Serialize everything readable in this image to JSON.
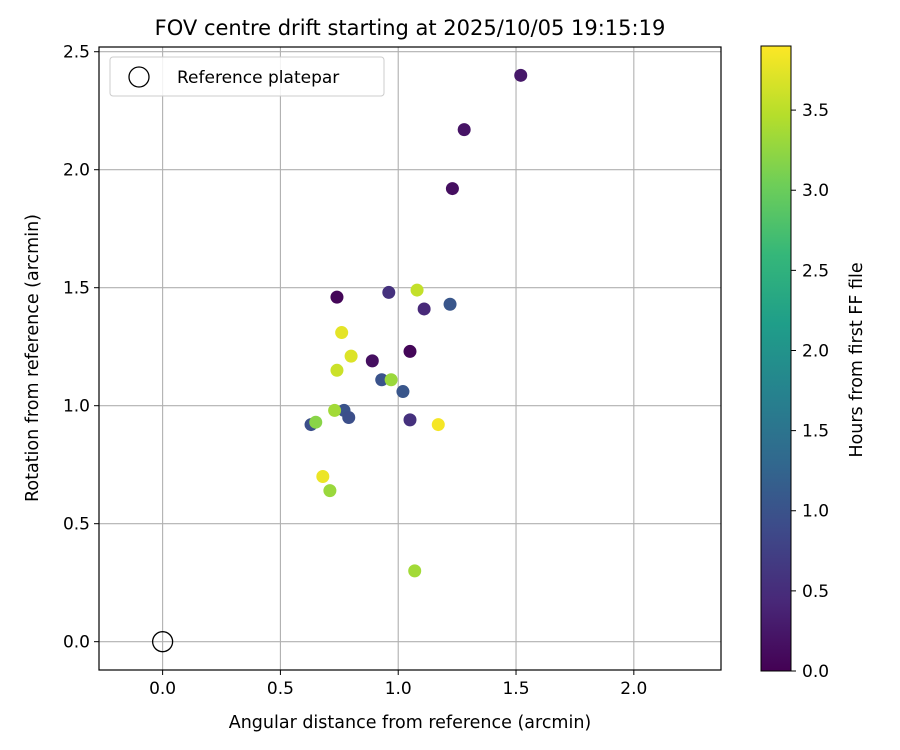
{
  "chart_data": {
    "type": "scatter",
    "title": "FOV centre drift starting at 2025/10/05 19:15:19",
    "xlabel": "Angular distance from reference (arcmin)",
    "ylabel": "Rotation from reference (arcmin)",
    "xlim": [
      -0.27,
      2.37
    ],
    "ylim": [
      -0.12,
      2.52
    ],
    "xticks": [
      0.0,
      0.5,
      1.0,
      1.5,
      2.0
    ],
    "xtick_labels": [
      "0.0",
      "0.5",
      "1.0",
      "1.5",
      "2.0"
    ],
    "yticks": [
      0.0,
      0.5,
      1.0,
      1.5,
      2.0,
      2.5
    ],
    "ytick_labels": [
      "0.0",
      "0.5",
      "1.0",
      "1.5",
      "2.0",
      "2.5"
    ],
    "grid": true,
    "legend": {
      "placement": "top-left",
      "entries": [
        {
          "label": "Reference platepar",
          "marker": "hollow-circle"
        }
      ]
    },
    "reference": {
      "x": 0.0,
      "y": 0.0
    },
    "colorbar": {
      "label": "Hours from first FF file",
      "colormap": "viridis",
      "range": [
        0.0,
        3.9
      ],
      "ticks": [
        0.0,
        0.5,
        1.0,
        1.5,
        2.0,
        2.5,
        3.0,
        3.5
      ],
      "tick_labels": [
        "0.0",
        "0.5",
        "1.0",
        "1.5",
        "2.0",
        "2.5",
        "3.0",
        "3.5"
      ]
    },
    "points": [
      {
        "x": 1.52,
        "y": 2.4,
        "hours": 0.25
      },
      {
        "x": 1.28,
        "y": 2.17,
        "hours": 0.2
      },
      {
        "x": 1.23,
        "y": 1.92,
        "hours": 0.15
      },
      {
        "x": 0.74,
        "y": 1.46,
        "hours": 0.05
      },
      {
        "x": 0.96,
        "y": 1.48,
        "hours": 0.55
      },
      {
        "x": 1.08,
        "y": 1.49,
        "hours": 3.55
      },
      {
        "x": 1.22,
        "y": 1.43,
        "hours": 1.05
      },
      {
        "x": 1.11,
        "y": 1.41,
        "hours": 0.45
      },
      {
        "x": 0.76,
        "y": 1.31,
        "hours": 3.75
      },
      {
        "x": 1.05,
        "y": 1.23,
        "hours": 0.05
      },
      {
        "x": 0.89,
        "y": 1.19,
        "hours": 0.15
      },
      {
        "x": 0.8,
        "y": 1.21,
        "hours": 3.7
      },
      {
        "x": 0.74,
        "y": 1.15,
        "hours": 3.6
      },
      {
        "x": 0.93,
        "y": 1.11,
        "hours": 1.0
      },
      {
        "x": 0.97,
        "y": 1.11,
        "hours": 3.3
      },
      {
        "x": 1.02,
        "y": 1.06,
        "hours": 1.05
      },
      {
        "x": 0.77,
        "y": 0.98,
        "hours": 1.0
      },
      {
        "x": 0.79,
        "y": 0.95,
        "hours": 0.95
      },
      {
        "x": 0.73,
        "y": 0.98,
        "hours": 3.35
      },
      {
        "x": 0.63,
        "y": 0.92,
        "hours": 0.95
      },
      {
        "x": 0.65,
        "y": 0.93,
        "hours": 3.2
      },
      {
        "x": 1.05,
        "y": 0.94,
        "hours": 0.55
      },
      {
        "x": 1.17,
        "y": 0.92,
        "hours": 3.85
      },
      {
        "x": 0.68,
        "y": 0.7,
        "hours": 3.8
      },
      {
        "x": 0.71,
        "y": 0.64,
        "hours": 3.3
      },
      {
        "x": 1.07,
        "y": 0.3,
        "hours": 3.35
      }
    ]
  }
}
